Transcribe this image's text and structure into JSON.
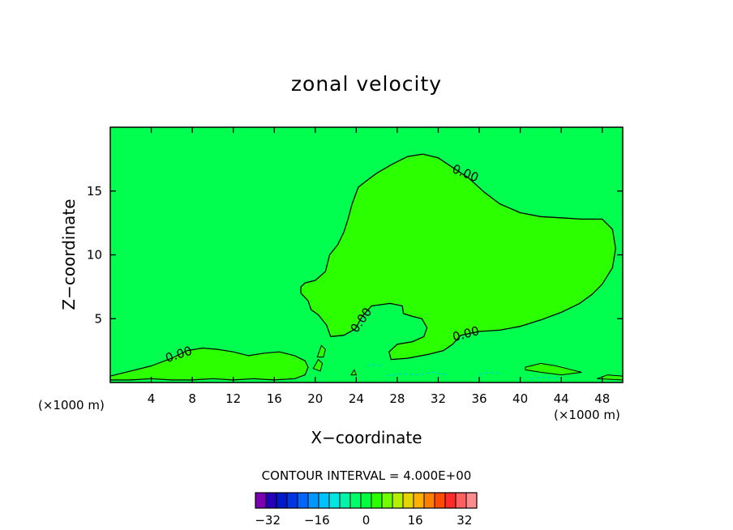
{
  "chart_data": {
    "type": "contour",
    "title": "zonal velocity",
    "xlabel": "X−coordinate",
    "ylabel": "Z−coordinate",
    "x_unit_left": "(×1000 m)",
    "x_unit_right": "(×1000 m)",
    "xlim": [
      0,
      50
    ],
    "ylim": [
      0,
      20
    ],
    "x_ticks": [
      4,
      8,
      12,
      16,
      20,
      24,
      28,
      32,
      36,
      40,
      44,
      48
    ],
    "y_ticks": [
      5,
      10,
      15
    ],
    "contour_labels": [
      "0.00",
      "0.00",
      "0.00",
      "0.00"
    ],
    "contour_interval_text": "CONTOUR INTERVAL = 4.000E+00",
    "colorbar": {
      "min": -36,
      "max": 36,
      "step": 4,
      "tick_values": [
        -32,
        -16,
        0,
        16,
        32
      ],
      "tick_labels": [
        "−32",
        "−16",
        "0",
        "16",
        "32"
      ],
      "colors": [
        "#7b00b4",
        "#2500b8",
        "#0019c9",
        "#0035e6",
        "#0066ff",
        "#0098ff",
        "#00c2ff",
        "#00e6e0",
        "#00f5a8",
        "#00ff6a",
        "#00ff3f",
        "#2bff00",
        "#72ff00",
        "#b5f000",
        "#e6d400",
        "#ffb000",
        "#ff8000",
        "#ff4a00",
        "#ff2a2a",
        "#ff5f5f",
        "#ff8c8c"
      ]
    },
    "fill_colors": {
      "background": "#00ff4e",
      "positive_region": "#2bff00"
    },
    "grid": false
  }
}
